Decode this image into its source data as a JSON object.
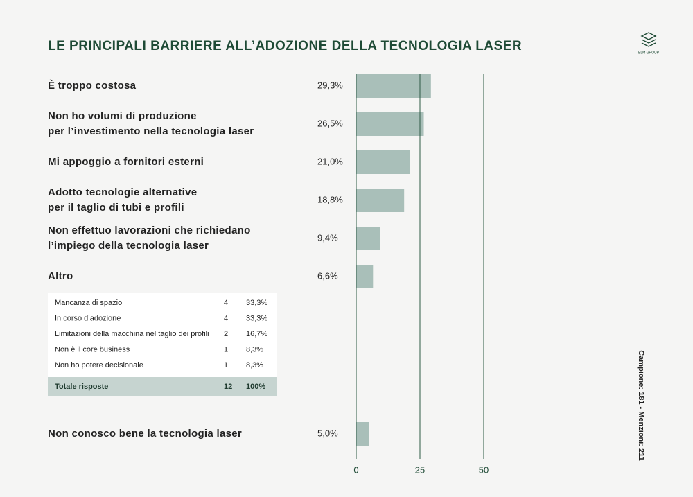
{
  "header": {
    "title": "LE PRINCIPALI BARRIERE ALL’ADOZIONE DELLA TECNOLOGIA LASER",
    "logo": "BLM GROUP"
  },
  "chart_data": {
    "type": "bar",
    "orientation": "horizontal",
    "categories": [
      "È troppo costosa",
      "Non ho volumi di produzione\nper l’investimento nella tecnologia laser",
      "Mi appoggio a fornitori esterni",
      "Adotto tecnologie alternative\nper il taglio di tubi e profili",
      "Non effettuo lavorazioni che richiedano\nl’impiego della tecnologia laser",
      "Altro",
      "Non conosco bene la tecnologia laser"
    ],
    "values": [
      29.3,
      26.5,
      21.0,
      18.8,
      9.4,
      6.6,
      5.0
    ],
    "value_labels": [
      "29,3%",
      "26,5%",
      "21,0%",
      "18,8%",
      "9,4%",
      "6,6%",
      "5,0%"
    ],
    "color": "#a9bfb9",
    "xlim": [
      0,
      50
    ],
    "xticks": [
      0,
      25,
      50
    ],
    "grid": true
  },
  "table": {
    "rows": [
      [
        "Mancanza di spazio",
        "4",
        "33,3%"
      ],
      [
        "In corso d’adozione",
        "4",
        "33,3%"
      ],
      [
        "Limitazioni della macchina nel taglio dei profili",
        "2",
        "16,7%"
      ],
      [
        "Non è il core business",
        "1",
        "8,3%"
      ],
      [
        "Non ho potere decisionale",
        "1",
        "8,3%"
      ]
    ],
    "total": [
      "Totale risposte",
      "12",
      "100%"
    ]
  },
  "note": "Campione: 181 - Menzioni: 211"
}
